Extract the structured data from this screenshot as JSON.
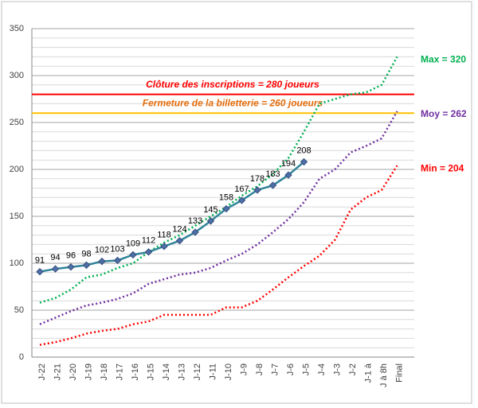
{
  "chart_data": {
    "type": "line",
    "categories": [
      "J-22",
      "J-21",
      "J-20",
      "J-19",
      "J-18",
      "J-17",
      "J-16",
      "J-15",
      "J-14",
      "J-13",
      "J-12",
      "J-11",
      "J-10",
      "J-9",
      "J-8",
      "J-7",
      "J-6",
      "J-5",
      "J-4",
      "J-3",
      "J-2",
      "J-1 à",
      "J à 8h",
      "Final"
    ],
    "series": [
      {
        "color": "#00b050",
        "style": "dotted",
        "values": [
          58,
          63,
          72,
          85,
          88,
          95,
          100,
          112,
          122,
          130,
          140,
          150,
          160,
          172,
          182,
          195,
          212,
          240,
          270,
          275,
          280,
          282,
          290,
          320
        ]
      },
      {
        "color": "#7030a0",
        "style": "dotted",
        "values": [
          35,
          42,
          49,
          55,
          58,
          62,
          68,
          78,
          83,
          88,
          90,
          95,
          103,
          110,
          120,
          133,
          147,
          165,
          190,
          200,
          218,
          225,
          233,
          262
        ]
      },
      {
        "color": "#ff0000",
        "style": "dotted",
        "values": [
          13,
          16,
          20,
          25,
          28,
          30,
          35,
          38,
          45,
          45,
          45,
          45,
          53,
          53,
          60,
          72,
          85,
          97,
          108,
          125,
          157,
          170,
          178,
          204
        ]
      },
      {
        "color": "#31849b",
        "style": "solid",
        "markers": true,
        "data_labels": true,
        "values": [
          91,
          94,
          96,
          98,
          102,
          103,
          109,
          112,
          118,
          124,
          133,
          145,
          158,
          167,
          178,
          183,
          194,
          208,
          null,
          null,
          null,
          null,
          null,
          null
        ]
      }
    ],
    "end_labels": [
      {
        "text": "Max = 320",
        "series": 0,
        "color": "#00b050"
      },
      {
        "text": "Moy = 262",
        "series": 1,
        "color": "#7030a0"
      },
      {
        "text": "Min = 204",
        "series": 2,
        "color": "#ff0000"
      }
    ],
    "reference_lines": [
      {
        "value": 280,
        "label": "Clôture des inscriptions = 280 joueurs",
        "color": "#ff0000"
      },
      {
        "value": 260,
        "label": "Fermeture de la billetterie = 260 joueurs",
        "color": "#ffc000",
        "label_color": "#e46c0a"
      }
    ],
    "ylim": [
      0,
      350
    ],
    "yticks": [
      0,
      50,
      100,
      150,
      200,
      250,
      300,
      350
    ],
    "minor_grid_step": 10,
    "grid": true
  }
}
